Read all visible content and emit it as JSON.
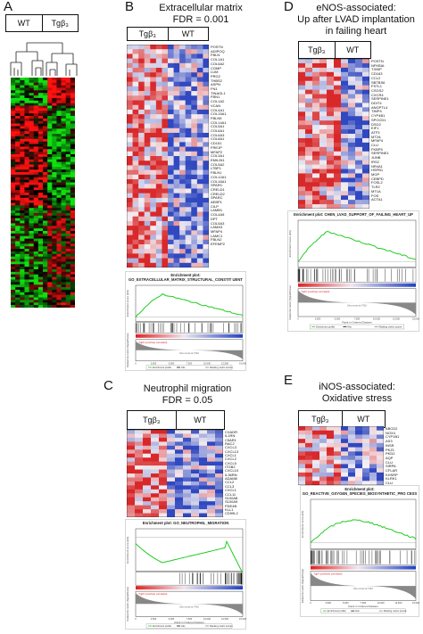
{
  "panels": {
    "A": {
      "letter": "A",
      "groups": [
        "WT",
        "Tgβ₃"
      ]
    },
    "B": {
      "letter": "B",
      "title_line1": "Extracellular matrix",
      "title_line2": "FDR = 0.001",
      "groups": [
        "Tgβ₃",
        "WT"
      ],
      "genes": [
        "POSTN",
        "ADIPOQ",
        "FBLN",
        "COL1A1",
        "COL6A2",
        "COMP",
        "LUM",
        "PRG2",
        "THBS2",
        "ASPN",
        "FN1",
        "TINAGL1",
        "FBN1",
        "COL1A2",
        "VCAN",
        "COL4A1",
        "COL15A1",
        "FBLN5",
        "COL14A1",
        "COL5A1",
        "COL6A1",
        "COL6A3",
        "COL8A1",
        "CD151",
        "FRE1P",
        "MFAP2",
        "COL3A1",
        "EMILIN1",
        "COL5A2",
        "LTBP1",
        "FBLN1",
        "COL12A1",
        "COL16A1",
        "SPARC",
        "CRELD1",
        "CRELD2",
        "SPARC",
        "AEBP1",
        "CILP",
        "LAMB1",
        "COL4A5",
        "DPT",
        "COL5A3",
        "LAMA3",
        "MFAP4",
        "LAMC1",
        "FBLN2",
        "EFEMP2"
      ],
      "gsea_title": "Enrichment plot: GO_EXTRACELLULAR_MATRIX_STRUCTURAL_CONSTIT UENT"
    },
    "C": {
      "letter": "C",
      "title_line1": "Neutrophil migration",
      "title_line2": "FDR = 0.05",
      "groups": [
        "Tgβ₃",
        "WT"
      ],
      "genes": [
        "CXADR",
        "IL1RN",
        "C5AR1",
        "RAC2",
        "CXCL3",
        "CXCL13",
        "CXCL1",
        "CXCL2",
        "CXCL5",
        "ITGB2",
        "CXCL10",
        "IL36RN",
        "ADAM8",
        "CCL2",
        "CCL3",
        "CXCL1",
        "CCL11",
        "S100A8",
        "S100A9",
        "PDE4B",
        "KLL1",
        "CD99L2"
      ],
      "gsea_title": "Enrichment plot: GO_NEUTROPHIL_MIGRATION"
    },
    "D": {
      "letter": "D",
      "title_line1": "eNOS-associated:",
      "title_line2": "Up after LVAD implantation",
      "title_line3": "in failing heart",
      "groups": [
        "Tgβ₃",
        "WT"
      ],
      "genes": [
        "POSTN",
        "NFKBIA",
        "TXNIP",
        "CD163",
        "CCL2",
        "SBTBS6",
        "FSTL1",
        "CSGS2",
        "CXCR4",
        "SERPINE1",
        "DDIT4",
        "ANGPTL4",
        "TIMP4",
        "CYP4B1",
        "SPOCD1",
        "DSG2",
        "EIF1",
        "ATF3",
        "MT2A",
        "MFAP4",
        "CLU",
        "FKBP5",
        "SERPINE1",
        "JUNB",
        "IRS2",
        "NR4A1",
        "HSPB1",
        "MGP",
        "CEBPD",
        "FOSL2",
        "TLR2",
        "MT1A",
        "FOS",
        "ACTA1"
      ],
      "gsea_title": "Enrichment plot: CHEN_LVAD_SUPPORT_OF_FAILING_HEART_UP"
    },
    "E": {
      "letter": "E",
      "title_line1": "iNOS-associated:",
      "title_line2": "Oxidative stress",
      "groups": [
        "Tgβ₃",
        "WT"
      ],
      "genes": [
        "ABCD2",
        "NOX4",
        "CYP1B1",
        "AS3",
        "INSR",
        "PKZ1",
        "PKD2",
        "AQP",
        "CLU",
        "SIRPA",
        "CFLAR",
        "KHSRP",
        "KLRK1",
        "CLU"
      ],
      "gsea_title": "Enrichment plot: GO_REACTIVE_OXYGEN_SPECIES_BIOSYNTHETIC_PRO CESS"
    }
  },
  "gsea_common": {
    "y_top_label": "Enrichment score (ES)",
    "y_bottom_label": "Ranked list metric (Signal2Noise)",
    "x_label": "Rank in Ordered Dataset",
    "zero_cross": "Zero cross at 7416",
    "legend": [
      "Enrichment profile",
      "Hits",
      "Ranking metric scores"
    ],
    "corr_label": "'Tgβ3' (positively correlated)",
    "x_ticks": [
      "0",
      "2,500",
      "5,000",
      "7,500",
      "10,000",
      "12,500",
      "15,000"
    ]
  },
  "colors": {
    "red": "#d7302b",
    "blue": "#3050c0",
    "green": "#22cc22",
    "heat_red": "#e00000",
    "heat_green": "#00d000"
  }
}
